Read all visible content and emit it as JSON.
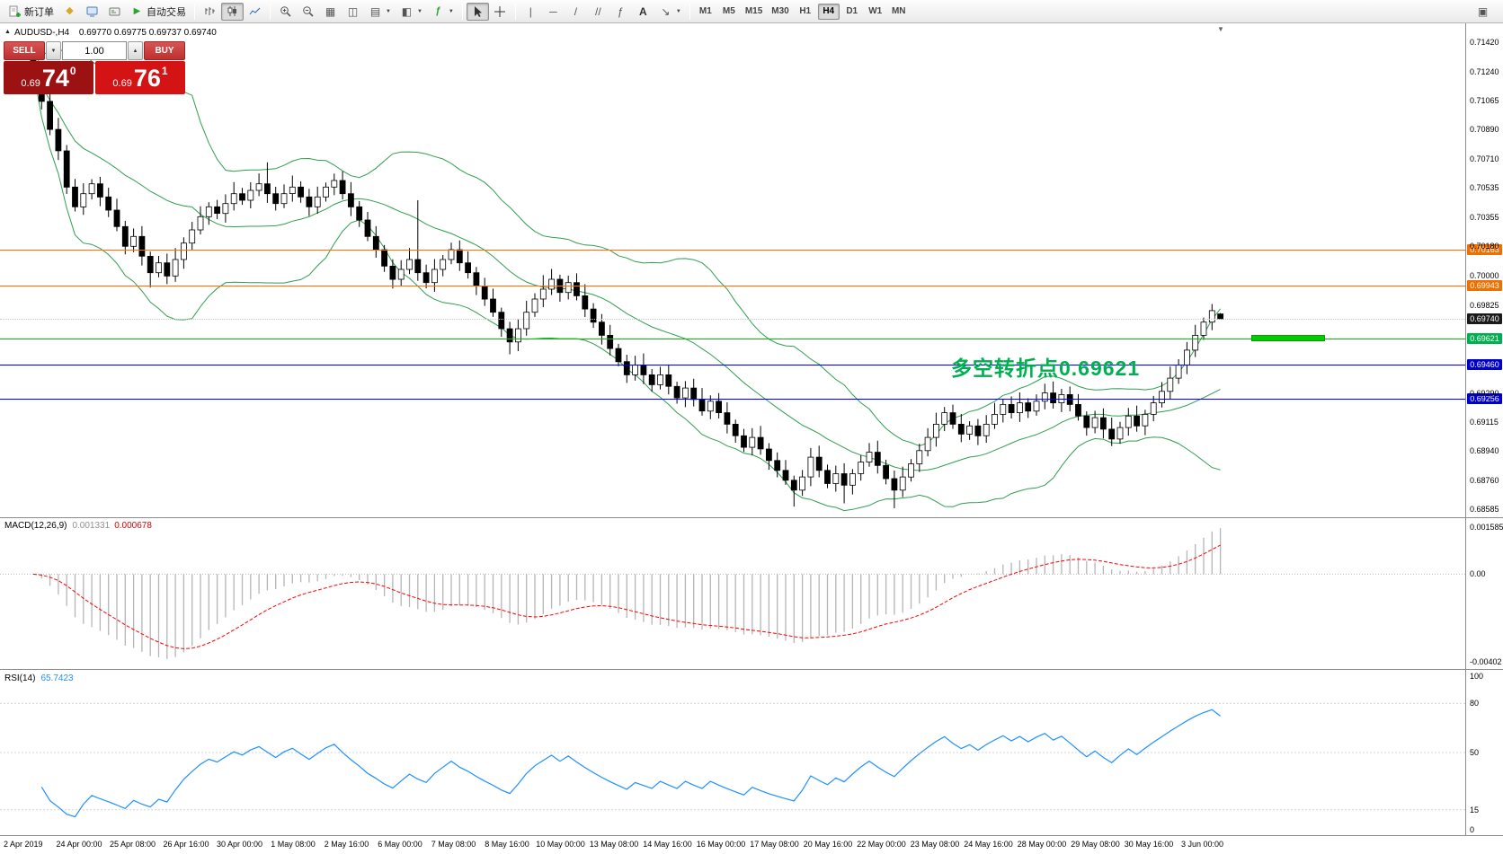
{
  "toolbar": {
    "new_order_label": "新订单",
    "autotrade_label": "自动交易",
    "text_tool_label": "A",
    "fibo_tool_label": "ƒ",
    "indicators_label": "ƒ",
    "timeframes": [
      "M1",
      "M5",
      "M15",
      "M30",
      "H1",
      "H4",
      "D1",
      "W1",
      "MN"
    ],
    "active_timeframe": "H4"
  },
  "symbol_header": {
    "symbol_tf": "AUDUSD-,H4",
    "ohlc": "0.69770 0.69775 0.69737 0.69740"
  },
  "one_click": {
    "sell_label": "SELL",
    "buy_label": "BUY",
    "volume": "1.00",
    "sell_price_prefix": "0.69",
    "sell_price_big": "74",
    "sell_price_sup": "0",
    "buy_price_prefix": "0.69",
    "buy_price_big": "76",
    "buy_price_sup": "1"
  },
  "annotation": {
    "text": "多空转折点0.69621",
    "color": "#00b050"
  },
  "levels": [
    {
      "label": "0.70163",
      "value": 0.70163,
      "badge": "#ee7000",
      "line": "#ff7000",
      "line_style": "solid"
    },
    {
      "label": "0.69943",
      "value": 0.69943,
      "badge": "#ee7000",
      "line": "#ff7000",
      "line_style": "solid"
    },
    {
      "label": "0.69740",
      "value": 0.6974,
      "badge": "#1a1a1a",
      "line": "#c8c8c8",
      "line_style": "dotted"
    },
    {
      "label": "0.69621",
      "value": 0.69621,
      "badge": "#00b050",
      "line": "#00c000",
      "line_style": "solid"
    },
    {
      "label": "0.69460",
      "value": 0.6946,
      "badge": "#0000cc",
      "line": "#0000e6",
      "line_style": "solid"
    },
    {
      "label": "0.69256",
      "value": 0.69256,
      "badge": "#0000cc",
      "line": "#0000e6",
      "line_style": "solid"
    }
  ],
  "price_axis": {
    "labels": [
      {
        "text": "0.71420",
        "value": 0.7142
      },
      {
        "text": "0.71240",
        "value": 0.7124
      },
      {
        "text": "0.71065",
        "value": 0.71065
      },
      {
        "text": "0.70890",
        "value": 0.7089
      },
      {
        "text": "0.70710",
        "value": 0.7071
      },
      {
        "text": "0.70535",
        "value": 0.70535
      },
      {
        "text": "0.70355",
        "value": 0.70355
      },
      {
        "text": "0.70180",
        "value": 0.7018
      },
      {
        "text": "0.70000",
        "value": 0.7
      },
      {
        "text": "0.69825",
        "value": 0.69825
      },
      {
        "text": "0.69290",
        "value": 0.6929
      },
      {
        "text": "0.69115",
        "value": 0.69115
      },
      {
        "text": "0.68940",
        "value": 0.6894
      },
      {
        "text": "0.68760",
        "value": 0.6876
      },
      {
        "text": "0.68585",
        "value": 0.68585
      }
    ]
  },
  "macd_panel": {
    "name": "MACD(12,26,9)",
    "value_main": "0.001331",
    "value_signal": "0.000678",
    "axis_top": "0.001585",
    "axis_zero": "0.00",
    "axis_bottom": "-0.00402"
  },
  "rsi_panel": {
    "name": "RSI(14)",
    "value": "65.7423",
    "axis": [
      {
        "text": "100",
        "value": 100
      },
      {
        "text": "80",
        "value": 80
      },
      {
        "text": "50",
        "value": 50
      },
      {
        "text": "15",
        "value": 15
      },
      {
        "text": "0",
        "value": 0
      }
    ]
  },
  "time_axis": [
    "2 Apr 2019",
    "24 Apr 00:00",
    "25 Apr 08:00",
    "26 Apr 16:00",
    "30 Apr 00:00",
    "1 May 08:00",
    "2 May 16:00",
    "6 May 00:00",
    "7 May 08:00",
    "8 May 16:00",
    "10 May 00:00",
    "13 May 08:00",
    "14 May 16:00",
    "16 May 00:00",
    "17 May 08:00",
    "20 May 16:00",
    "22 May 00:00",
    "23 May 08:00",
    "24 May 16:00",
    "28 May 00:00",
    "29 May 08:00",
    "30 May 16:00",
    "3 Jun 00:00"
  ],
  "chart_data": {
    "type": "candlestick",
    "symbol": "AUDUSD",
    "timeframe": "H4",
    "title": "AUDUSD-,H4",
    "price_range": [
      0.68585,
      0.7142
    ],
    "current_bid": 0.6974,
    "current_ask": 0.69761,
    "last_bar_ohlc": [
      0.6977,
      0.69775,
      0.69737,
      0.6974
    ],
    "key_levels": [
      0.70163,
      0.69943,
      0.6974,
      0.69621,
      0.6946,
      0.69256
    ],
    "indicators": {
      "bollinger": {
        "period": 20,
        "deviation": 2,
        "color": "#2f9e4f"
      },
      "macd": {
        "fast": 12,
        "slow": 26,
        "signal": 9,
        "histogram_color": "#b5b5b5",
        "signal_color": "#ff0000",
        "current_main": 0.001331,
        "current_signal": 0.000678
      },
      "rsi": {
        "period": 14,
        "color": "#1e90ff",
        "current": 65.7423
      }
    },
    "candle_up_color": "#ffffff",
    "candle_down_color": "#000000",
    "first_open": 0.7139,
    "wick_base": 0.00028,
    "wick_step": 7e-05,
    "closes": [
      0.7125,
      0.7106,
      0.7089,
      0.7076,
      0.7054,
      0.7042,
      0.705,
      0.7056,
      0.7048,
      0.704,
      0.703,
      0.7018,
      0.7024,
      0.7012,
      0.7002,
      0.7008,
      0.7,
      0.701,
      0.702,
      0.7028,
      0.7036,
      0.7042,
      0.7038,
      0.7044,
      0.705,
      0.7046,
      0.7052,
      0.7056,
      0.705,
      0.7044,
      0.705,
      0.7054,
      0.7048,
      0.7042,
      0.7048,
      0.7054,
      0.7058,
      0.705,
      0.7042,
      0.7034,
      0.7024,
      0.7016,
      0.7006,
      0.6998,
      0.7004,
      0.701,
      0.7002,
      0.6996,
      0.7004,
      0.701,
      0.7016,
      0.7008,
      0.7002,
      0.6994,
      0.6986,
      0.6978,
      0.6968,
      0.696,
      0.6968,
      0.6978,
      0.6986,
      0.6992,
      0.6998,
      0.699,
      0.6996,
      0.6988,
      0.698,
      0.6972,
      0.6964,
      0.6956,
      0.6948,
      0.694,
      0.6946,
      0.694,
      0.6934,
      0.694,
      0.6933,
      0.6926,
      0.6932,
      0.6925,
      0.6918,
      0.6924,
      0.6917,
      0.691,
      0.6903,
      0.6896,
      0.6902,
      0.6895,
      0.6888,
      0.6882,
      0.6876,
      0.687,
      0.6878,
      0.689,
      0.6882,
      0.6874,
      0.688,
      0.6873,
      0.688,
      0.6887,
      0.6893,
      0.6885,
      0.6877,
      0.687,
      0.6878,
      0.6886,
      0.6894,
      0.6902,
      0.691,
      0.6917,
      0.691,
      0.6904,
      0.6909,
      0.6903,
      0.691,
      0.6916,
      0.6922,
      0.6917,
      0.6923,
      0.6918,
      0.6924,
      0.6929,
      0.6923,
      0.6928,
      0.6922,
      0.6915,
      0.6908,
      0.6914,
      0.6907,
      0.6901,
      0.6908,
      0.6915,
      0.6909,
      0.6916,
      0.6923,
      0.693,
      0.6938,
      0.6946,
      0.6955,
      0.6964,
      0.6972,
      0.6979,
      0.6974
    ],
    "extremes": {
      "0": {
        "h": 0.7142
      },
      "14": {
        "l": 0.6993
      },
      "28": {
        "h": 0.7069
      },
      "46": {
        "h": 0.7046
      },
      "57": {
        "l": 0.69525
      },
      "61": {
        "h": 0.70005
      },
      "91": {
        "l": 0.686
      },
      "97": {
        "l": 0.6862
      },
      "103": {
        "l": 0.6859
      },
      "141": {
        "h": 0.6983
      },
      "142": {
        "o": 0.6977,
        "h": 0.69775,
        "l": 0.69737
      }
    }
  }
}
